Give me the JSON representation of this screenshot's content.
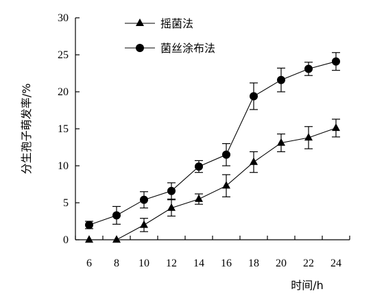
{
  "chart_data": {
    "type": "line",
    "x": [
      6,
      8,
      10,
      12,
      14,
      16,
      18,
      20,
      22,
      24
    ],
    "xlabel": "时间/h",
    "ylabel": "分生孢子萌发率/%",
    "ylim": [
      0,
      30
    ],
    "y_ticks": [
      0,
      5,
      10,
      15,
      20,
      25,
      30
    ],
    "grid": false,
    "legend_position": "top-left",
    "series": [
      {
        "name": "摇菌法",
        "marker": "triangle",
        "color": "#000000",
        "values": [
          0,
          0,
          2.0,
          4.3,
          5.5,
          7.3,
          10.5,
          13.1,
          13.8,
          15.1
        ],
        "errors": [
          0,
          0,
          0.9,
          1.1,
          0.7,
          1.5,
          1.4,
          1.2,
          1.5,
          1.2
        ]
      },
      {
        "name": "菌丝涂布法",
        "marker": "circle",
        "color": "#000000",
        "values": [
          2.0,
          3.3,
          5.4,
          6.6,
          9.9,
          11.5,
          19.4,
          21.6,
          23.1,
          24.1
        ],
        "errors": [
          0.5,
          1.2,
          1.1,
          1.1,
          0.8,
          1.5,
          1.8,
          1.6,
          0.9,
          1.2
        ]
      }
    ]
  }
}
